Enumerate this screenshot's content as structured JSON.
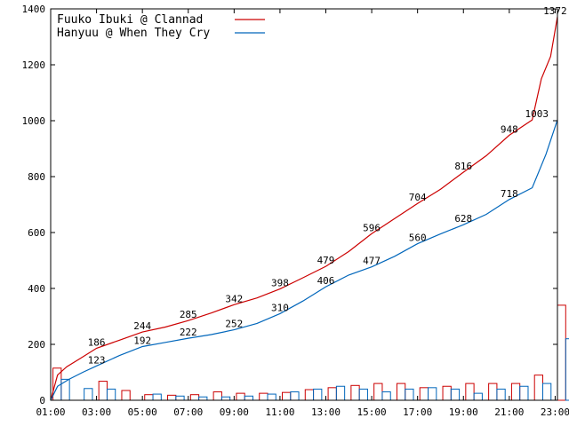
{
  "chart_data": {
    "type": "line",
    "title": "",
    "xlabel": "",
    "ylabel": "",
    "ylim": [
      0,
      1400
    ],
    "y_ticks": [
      "0",
      "200",
      "400",
      "600",
      "800",
      "1000",
      "1200",
      "1400"
    ],
    "x_tick_labels": [
      "01:00",
      "03:00",
      "05:00",
      "07:00",
      "09:00",
      "11:00",
      "13:00",
      "15:00",
      "17:00",
      "19:00",
      "21:00",
      "23:00"
    ],
    "legend_position": "top-left",
    "grid": false,
    "series": [
      {
        "name": "Fuuko Ibuki @ Clannad",
        "color": "#cc0000",
        "cumulative": [
          {
            "x": 1.0,
            "y": 0
          },
          {
            "x": 1.3,
            "y": 90
          },
          {
            "x": 1.7,
            "y": 120
          },
          {
            "x": 2.3,
            "y": 150
          },
          {
            "x": 3.0,
            "y": 186
          },
          {
            "x": 4.0,
            "y": 215
          },
          {
            "x": 5.0,
            "y": 244
          },
          {
            "x": 6.0,
            "y": 262
          },
          {
            "x": 7.0,
            "y": 285
          },
          {
            "x": 8.0,
            "y": 312
          },
          {
            "x": 9.0,
            "y": 342
          },
          {
            "x": 10.0,
            "y": 366
          },
          {
            "x": 11.0,
            "y": 398
          },
          {
            "x": 12.0,
            "y": 438
          },
          {
            "x": 13.0,
            "y": 479
          },
          {
            "x": 14.0,
            "y": 532
          },
          {
            "x": 15.0,
            "y": 596
          },
          {
            "x": 16.0,
            "y": 650
          },
          {
            "x": 17.0,
            "y": 704
          },
          {
            "x": 18.0,
            "y": 755
          },
          {
            "x": 19.0,
            "y": 816
          },
          {
            "x": 20.0,
            "y": 875
          },
          {
            "x": 21.0,
            "y": 948
          },
          {
            "x": 22.0,
            "y": 1003
          },
          {
            "x": 22.4,
            "y": 1150
          },
          {
            "x": 22.8,
            "y": 1230
          },
          {
            "x": 23.1,
            "y": 1372
          }
        ],
        "point_labels": [
          {
            "x": 3.0,
            "y": 186,
            "label": "186"
          },
          {
            "x": 5.0,
            "y": 244,
            "label": "244"
          },
          {
            "x": 7.0,
            "y": 285,
            "label": "285"
          },
          {
            "x": 9.0,
            "y": 342,
            "label": "342"
          },
          {
            "x": 11.0,
            "y": 398,
            "label": "398"
          },
          {
            "x": 13.0,
            "y": 479,
            "label": "479"
          },
          {
            "x": 15.0,
            "y": 596,
            "label": "596"
          },
          {
            "x": 17.0,
            "y": 704,
            "label": "704"
          },
          {
            "x": 19.0,
            "y": 816,
            "label": "816"
          },
          {
            "x": 21.0,
            "y": 948,
            "label": "948"
          },
          {
            "x": 23.0,
            "y": 1372,
            "label": "1372"
          }
        ],
        "hourly": [
          115,
          0,
          68,
          35,
          20,
          18,
          20,
          30,
          25,
          25,
          28,
          38,
          45,
          53,
          60,
          60,
          45,
          50,
          60,
          60,
          60,
          90,
          340
        ]
      },
      {
        "name": "Hanyuu @ When They Cry",
        "color": "#0066bb",
        "cumulative": [
          {
            "x": 1.0,
            "y": 0
          },
          {
            "x": 1.3,
            "y": 50
          },
          {
            "x": 1.8,
            "y": 75
          },
          {
            "x": 2.4,
            "y": 100
          },
          {
            "x": 3.0,
            "y": 123
          },
          {
            "x": 4.0,
            "y": 160
          },
          {
            "x": 5.0,
            "y": 192
          },
          {
            "x": 6.0,
            "y": 207
          },
          {
            "x": 7.0,
            "y": 222
          },
          {
            "x": 8.0,
            "y": 235
          },
          {
            "x": 9.0,
            "y": 252
          },
          {
            "x": 10.0,
            "y": 275
          },
          {
            "x": 11.0,
            "y": 310
          },
          {
            "x": 12.0,
            "y": 355
          },
          {
            "x": 13.0,
            "y": 406
          },
          {
            "x": 14.0,
            "y": 448
          },
          {
            "x": 15.0,
            "y": 477
          },
          {
            "x": 16.0,
            "y": 515
          },
          {
            "x": 17.0,
            "y": 560
          },
          {
            "x": 18.0,
            "y": 595
          },
          {
            "x": 19.0,
            "y": 628
          },
          {
            "x": 20.0,
            "y": 665
          },
          {
            "x": 21.0,
            "y": 718
          },
          {
            "x": 22.0,
            "y": 760
          },
          {
            "x": 22.6,
            "y": 880
          },
          {
            "x": 23.1,
            "y": 1003
          }
        ],
        "point_labels": [
          {
            "x": 3.0,
            "y": 123,
            "label": "123"
          },
          {
            "x": 5.0,
            "y": 192,
            "label": "192"
          },
          {
            "x": 7.0,
            "y": 222,
            "label": "222"
          },
          {
            "x": 9.0,
            "y": 252,
            "label": "252"
          },
          {
            "x": 11.0,
            "y": 310,
            "label": "310"
          },
          {
            "x": 13.0,
            "y": 406,
            "label": "406"
          },
          {
            "x": 15.0,
            "y": 477,
            "label": "477"
          },
          {
            "x": 17.0,
            "y": 560,
            "label": "560"
          },
          {
            "x": 19.0,
            "y": 628,
            "label": "628"
          },
          {
            "x": 21.0,
            "y": 718,
            "label": "718"
          },
          {
            "x": 22.2,
            "y": 1003,
            "label": "1003"
          }
        ],
        "hourly": [
          75,
          42,
          40,
          0,
          22,
          15,
          12,
          12,
          15,
          22,
          30,
          40,
          50,
          40,
          30,
          40,
          45,
          40,
          25,
          40,
          50,
          60,
          220
        ]
      }
    ]
  }
}
